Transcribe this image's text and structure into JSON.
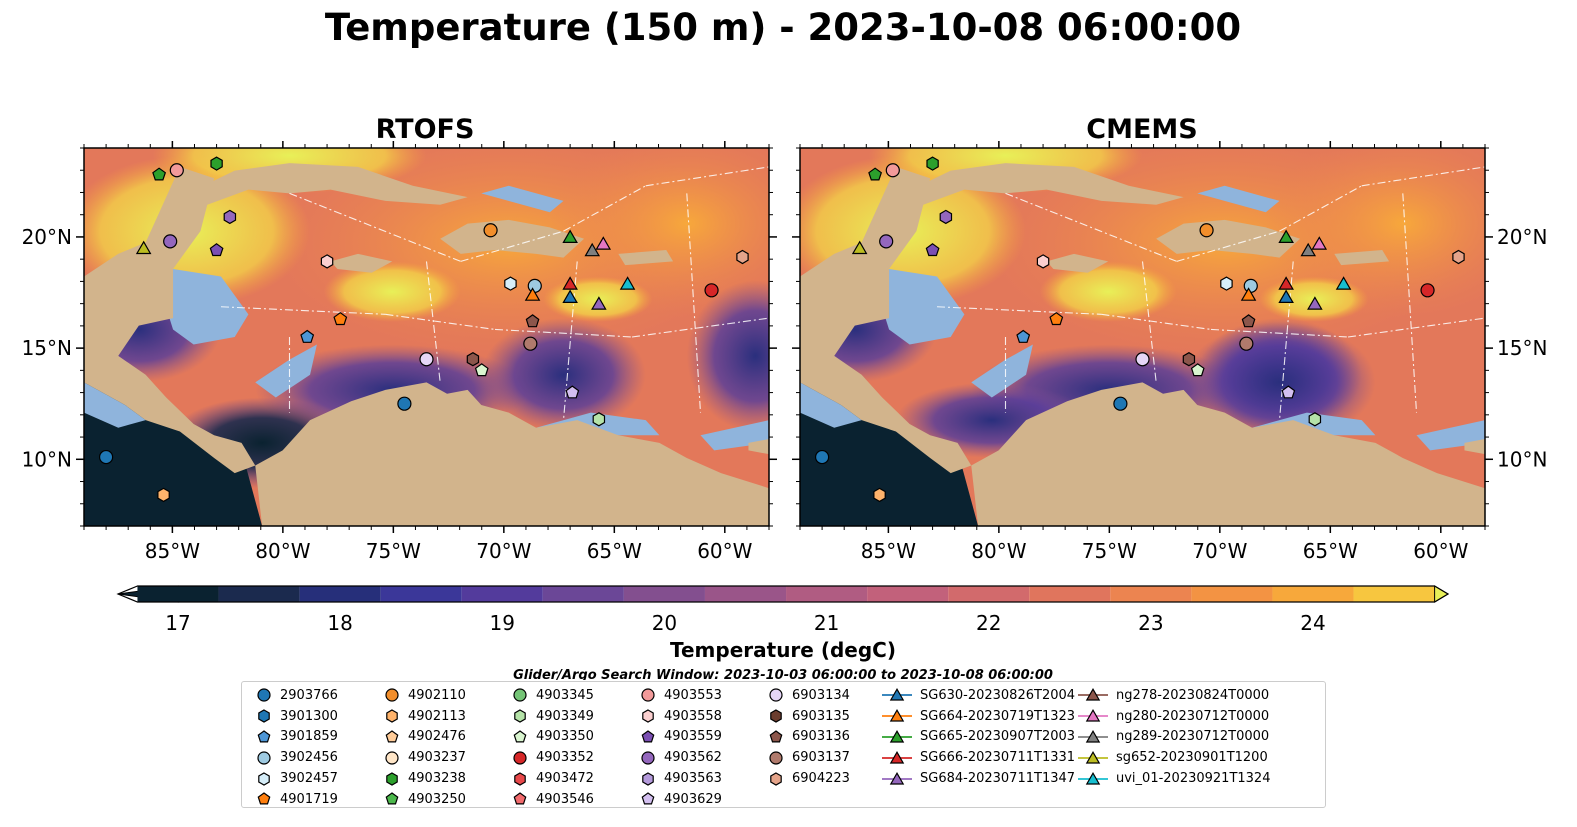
{
  "title": "Temperature (150 m) - 2023-10-08 06:00:00",
  "panels": [
    {
      "title": "RTOFS"
    },
    {
      "title": "CMEMS"
    }
  ],
  "axes": {
    "x_ticks": [
      "85°W",
      "80°W",
      "75°W",
      "70°W",
      "65°W",
      "60°W"
    ],
    "x_tick_values": [
      -85,
      -80,
      -75,
      -70,
      -65,
      -60
    ],
    "y_ticks": [
      "20°N",
      "15°N",
      "10°N"
    ],
    "y_tick_values": [
      20,
      15,
      10
    ],
    "lon_range": [
      -89,
      -58
    ],
    "lat_range": [
      7,
      24
    ]
  },
  "colorbar": {
    "label": "Temperature (degC)",
    "ticks": [
      "17",
      "18",
      "19",
      "20",
      "21",
      "22",
      "23",
      "24"
    ],
    "tick_values": [
      17,
      18,
      19,
      20,
      21,
      22,
      23,
      24
    ],
    "range": [
      16.75,
      24.75
    ],
    "step": 0.5,
    "extend": "both",
    "colors": [
      "#0a2230",
      "#1b2a4e",
      "#262f7a",
      "#3b3799",
      "#533b9c",
      "#6b4797",
      "#834f8f",
      "#9a5589",
      "#b05c82",
      "#c2617b",
      "#d26a6c",
      "#e0755d",
      "#ec8450",
      "#f39343",
      "#f7a83b",
      "#f7c63f",
      "#e8f058"
    ]
  },
  "search_window": "Glider/Argo Search Window: 2023-10-03 06:00:00 to 2023-10-08 06:00:00",
  "legend": {
    "columns": [
      [
        {
          "label": "2903766",
          "marker": "circle",
          "color": "#1f77b4"
        },
        {
          "label": "3901300",
          "marker": "hexagon",
          "color": "#1f77b4"
        },
        {
          "label": "3901859",
          "marker": "pentagon",
          "color": "#4d96d6"
        },
        {
          "label": "3902456",
          "marker": "circle",
          "color": "#9ecae1"
        },
        {
          "label": "3902457",
          "marker": "hexagon",
          "color": "#d6eef9"
        },
        {
          "label": "4901719",
          "marker": "pentagon",
          "color": "#ff7f0e"
        }
      ],
      [
        {
          "label": "4902110",
          "marker": "circle",
          "color": "#f28e2b"
        },
        {
          "label": "4902113",
          "marker": "hexagon",
          "color": "#ffb36b"
        },
        {
          "label": "4902476",
          "marker": "pentagon",
          "color": "#ffcc99"
        },
        {
          "label": "4903237",
          "marker": "circle",
          "color": "#ffe6c8"
        },
        {
          "label": "4903238",
          "marker": "hexagon",
          "color": "#2ca02c"
        },
        {
          "label": "4903250",
          "marker": "pentagon",
          "color": "#4cb84c"
        }
      ],
      [
        {
          "label": "4903345",
          "marker": "circle",
          "color": "#74c476"
        },
        {
          "label": "4903349",
          "marker": "hexagon",
          "color": "#b5e3a8"
        },
        {
          "label": "4903350",
          "marker": "pentagon",
          "color": "#d9f5cf"
        },
        {
          "label": "4903352",
          "marker": "circle",
          "color": "#d62728"
        },
        {
          "label": "4903472",
          "marker": "hexagon",
          "color": "#e8484a"
        },
        {
          "label": "4903546",
          "marker": "pentagon",
          "color": "#f26b6d"
        }
      ],
      [
        {
          "label": "4903553",
          "marker": "circle",
          "color": "#f29a9a"
        },
        {
          "label": "4903558",
          "marker": "hexagon",
          "color": "#fbd0d0"
        },
        {
          "label": "4903559",
          "marker": "pentagon",
          "color": "#7b4fb3"
        },
        {
          "label": "4903562",
          "marker": "circle",
          "color": "#9467bd"
        },
        {
          "label": "4903563",
          "marker": "hexagon",
          "color": "#b49adb"
        },
        {
          "label": "4903629",
          "marker": "pentagon",
          "color": "#d3bff0"
        }
      ],
      [
        {
          "label": "6903134",
          "marker": "circle",
          "color": "#e6d6f7"
        },
        {
          "label": "6903135",
          "marker": "hexagon",
          "color": "#6b3d2e"
        },
        {
          "label": "6903136",
          "marker": "pentagon",
          "color": "#8c564b"
        },
        {
          "label": "6903137",
          "marker": "circle",
          "color": "#b07a6c"
        },
        {
          "label": "6904223",
          "marker": "hexagon",
          "color": "#e5a48a"
        }
      ],
      [
        {
          "label": "SG630-20230826T2004",
          "marker": "triangle-line",
          "color": "#1f77b4"
        },
        {
          "label": "SG664-20230719T1323",
          "marker": "triangle-line",
          "color": "#ff7f0e"
        },
        {
          "label": "SG665-20230907T2003",
          "marker": "triangle-line",
          "color": "#2ca02c"
        },
        {
          "label": "SG666-20230711T1331",
          "marker": "triangle-line",
          "color": "#d62728"
        },
        {
          "label": "SG684-20230711T1347",
          "marker": "triangle-line",
          "color": "#9467bd"
        }
      ],
      [
        {
          "label": "ng278-20230824T0000",
          "marker": "triangle-line",
          "color": "#8c564b"
        },
        {
          "label": "ng280-20230712T0000",
          "marker": "triangle-line",
          "color": "#e377c2"
        },
        {
          "label": "ng289-20230712T0000",
          "marker": "triangle-line",
          "color": "#7f7f7f"
        },
        {
          "label": "sg652-20230901T1200",
          "marker": "triangle-line",
          "color": "#bcbd22"
        },
        {
          "label": "uvi_01-20230921T1324",
          "marker": "triangle-line",
          "color": "#17becf"
        }
      ]
    ]
  },
  "observations": [
    {
      "lon": -88.0,
      "lat": 10.1,
      "marker": "circle",
      "color": "#1f77b4"
    },
    {
      "lon": -85.4,
      "lat": 8.4,
      "marker": "hexagon",
      "color": "#ffb36b"
    },
    {
      "lon": -85.6,
      "lat": 22.8,
      "marker": "pentagon",
      "color": "#2ca02c"
    },
    {
      "lon": -84.8,
      "lat": 23.0,
      "marker": "circle",
      "color": "#f29a9a"
    },
    {
      "lon": -83.0,
      "lat": 23.3,
      "marker": "hexagon",
      "color": "#2ca02c"
    },
    {
      "lon": -82.4,
      "lat": 20.9,
      "marker": "hexagon",
      "color": "#9467bd"
    },
    {
      "lon": -86.3,
      "lat": 19.5,
      "marker": "triangle",
      "color": "#bcbd22"
    },
    {
      "lon": -85.1,
      "lat": 19.8,
      "marker": "circle",
      "color": "#9467bd"
    },
    {
      "lon": -83.0,
      "lat": 19.4,
      "marker": "pentagon",
      "color": "#7b4fb3"
    },
    {
      "lon": -78.0,
      "lat": 18.9,
      "marker": "hexagon",
      "color": "#fbd0d0"
    },
    {
      "lon": -77.4,
      "lat": 16.3,
      "marker": "pentagon",
      "color": "#ff7f0e"
    },
    {
      "lon": -78.9,
      "lat": 15.5,
      "marker": "pentagon",
      "color": "#4d96d6"
    },
    {
      "lon": -73.5,
      "lat": 14.5,
      "marker": "circle",
      "color": "#e6d6f7"
    },
    {
      "lon": -74.5,
      "lat": 12.5,
      "marker": "circle",
      "color": "#1f77b4"
    },
    {
      "lon": -71.4,
      "lat": 14.5,
      "marker": "hexagon",
      "color": "#8c564b"
    },
    {
      "lon": -71.0,
      "lat": 14.0,
      "marker": "pentagon",
      "color": "#d9f5cf"
    },
    {
      "lon": -70.6,
      "lat": 20.3,
      "marker": "circle",
      "color": "#f28e2b"
    },
    {
      "lon": -69.7,
      "lat": 17.9,
      "marker": "hexagon",
      "color": "#d6eef9"
    },
    {
      "lon": -68.6,
      "lat": 17.8,
      "marker": "circle",
      "color": "#9ecae1"
    },
    {
      "lon": -68.7,
      "lat": 17.4,
      "marker": "triangle",
      "color": "#ff7f0e"
    },
    {
      "lon": -68.7,
      "lat": 16.2,
      "marker": "pentagon",
      "color": "#8c564b"
    },
    {
      "lon": -68.8,
      "lat": 15.2,
      "marker": "circle",
      "color": "#b07a6c"
    },
    {
      "lon": -67.0,
      "lat": 20.0,
      "marker": "triangle",
      "color": "#2ca02c"
    },
    {
      "lon": -66.0,
      "lat": 19.4,
      "marker": "triangle",
      "color": "#7f7f7f"
    },
    {
      "lon": -65.5,
      "lat": 19.7,
      "marker": "triangle",
      "color": "#e377c2"
    },
    {
      "lon": -67.0,
      "lat": 17.9,
      "marker": "triangle",
      "color": "#d62728"
    },
    {
      "lon": -67.0,
      "lat": 17.3,
      "marker": "triangle",
      "color": "#1f77b4"
    },
    {
      "lon": -65.7,
      "lat": 17.0,
      "marker": "triangle",
      "color": "#9467bd"
    },
    {
      "lon": -64.4,
      "lat": 17.9,
      "marker": "triangle",
      "color": "#17becf"
    },
    {
      "lon": -60.6,
      "lat": 17.6,
      "marker": "circle",
      "color": "#d62728"
    },
    {
      "lon": -59.2,
      "lat": 19.1,
      "marker": "hexagon",
      "color": "#e5a48a"
    },
    {
      "lon": -66.9,
      "lat": 13.0,
      "marker": "pentagon",
      "color": "#d3bff0"
    },
    {
      "lon": -65.7,
      "lat": 11.8,
      "marker": "hexagon",
      "color": "#b5e3a8"
    }
  ]
}
